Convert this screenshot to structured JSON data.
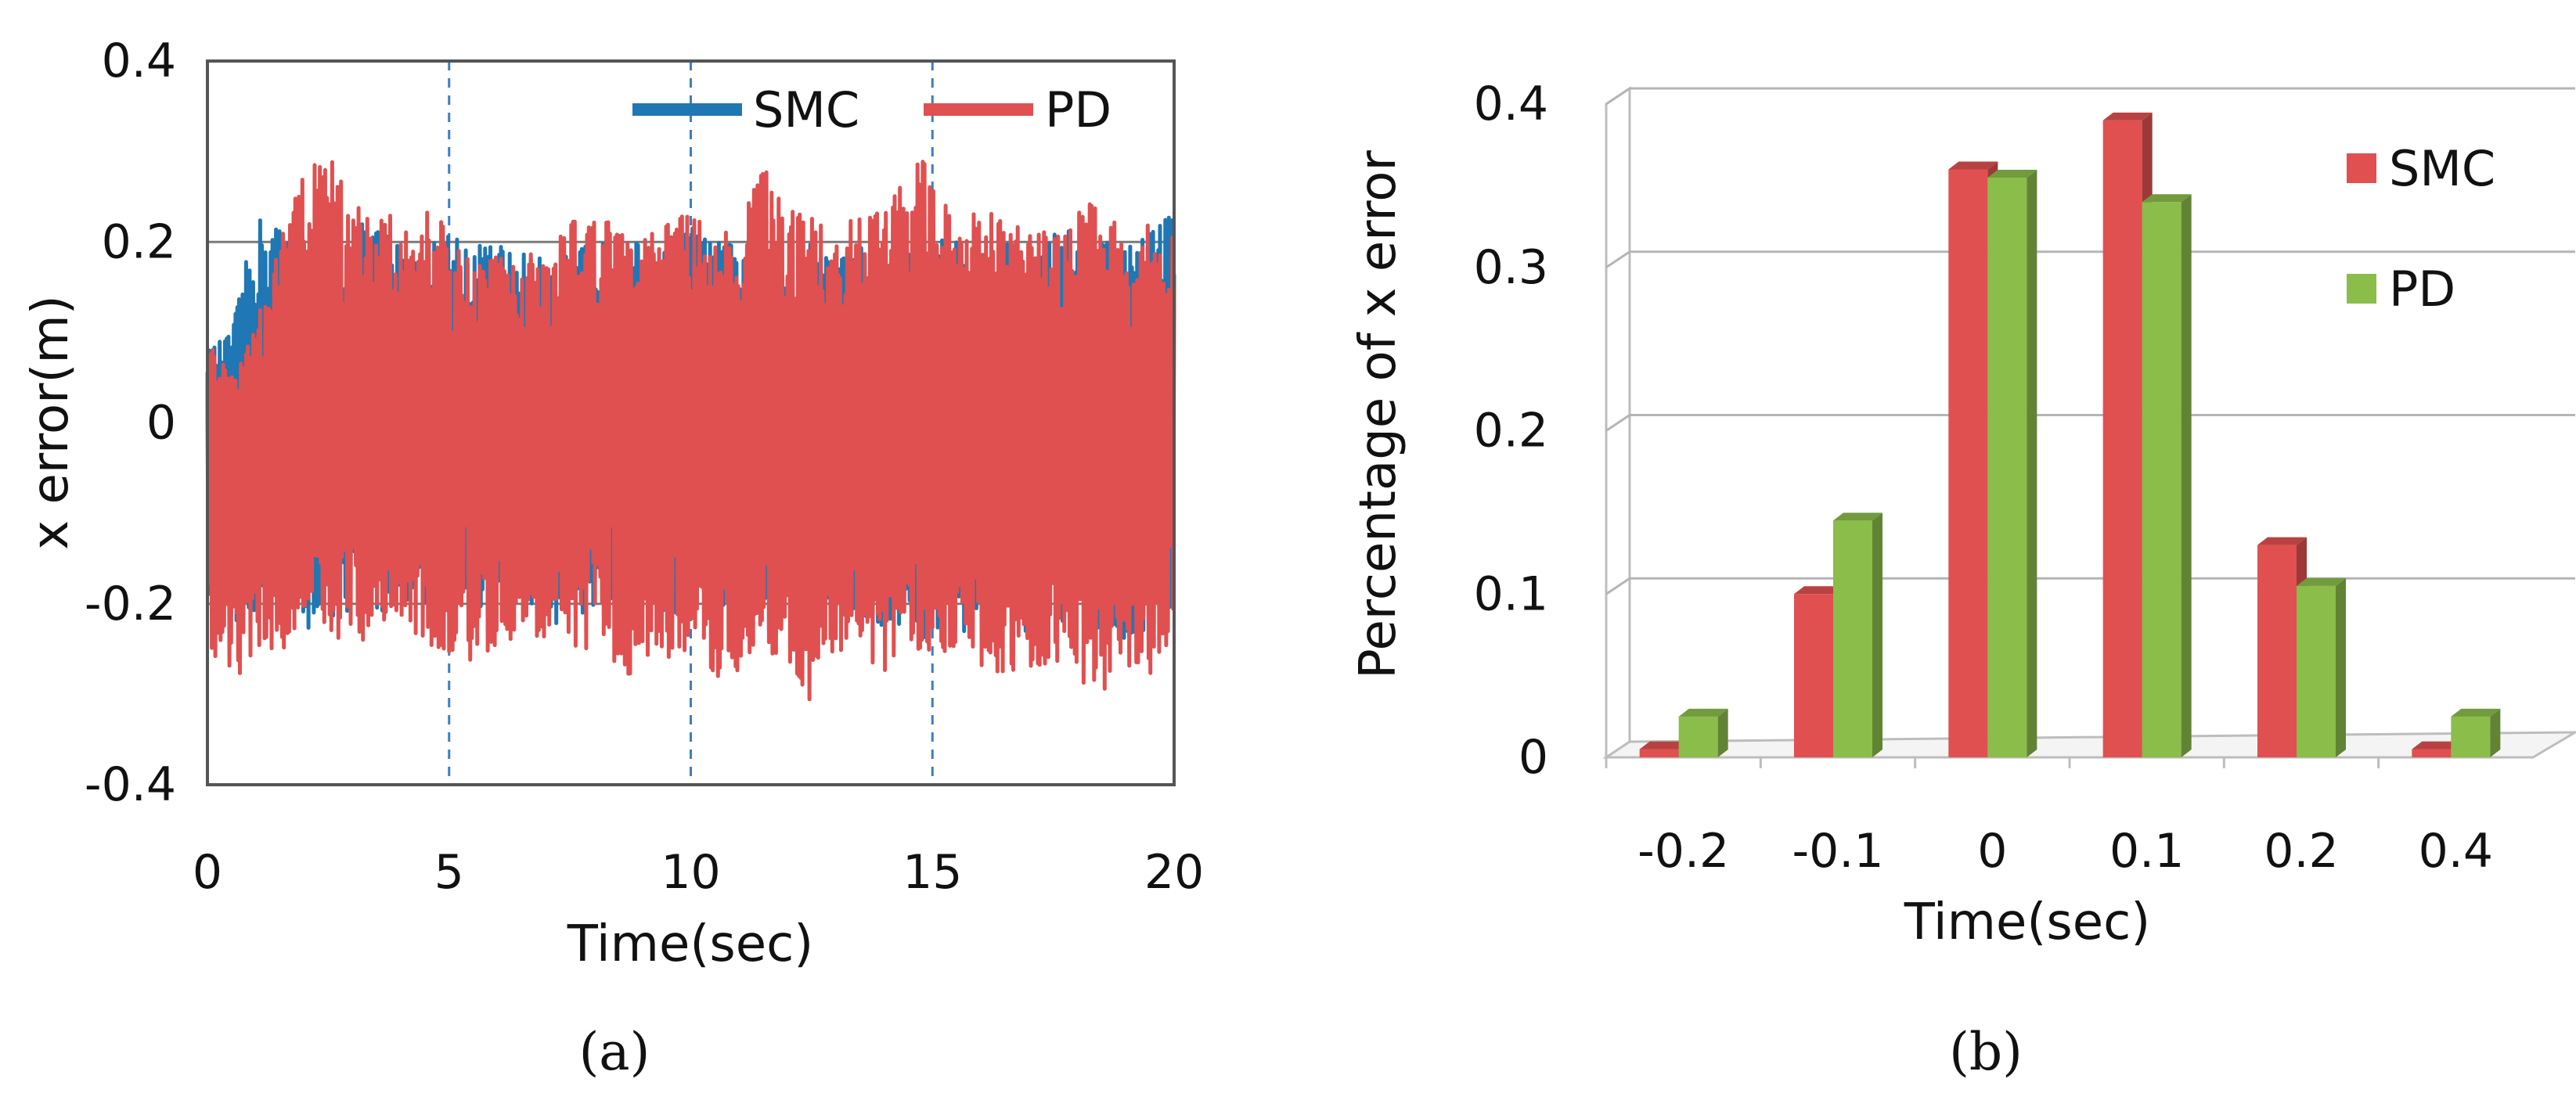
{
  "chart_data": [
    {
      "panel": "a",
      "caption": "(a)",
      "type": "line",
      "title": "",
      "xlabel": "Time(sec)",
      "ylabel": "x error(m)",
      "xlim": [
        0,
        20
      ],
      "ylim": [
        -0.4,
        0.4
      ],
      "xticks": [
        "0",
        "5",
        "10",
        "15",
        "20"
      ],
      "yticks": [
        "0.4",
        "0.2",
        "0",
        "-0.2",
        "-0.4"
      ],
      "grid": "horizontal solid, vertical dashed",
      "legend_position": "top-right",
      "series": [
        {
          "name": "SMC",
          "color": "#1f77b4",
          "x": [
            0,
            0.5,
            1,
            1.5,
            2,
            2.5,
            3,
            3.5,
            4,
            4.5,
            5,
            5.5,
            6,
            6.5,
            7,
            7.5,
            8,
            8.5,
            9,
            9.5,
            10,
            10.5,
            11,
            11.5,
            12,
            12.5,
            13,
            13.5,
            14,
            14.5,
            15,
            15.5,
            16,
            16.5,
            17,
            17.5,
            18,
            18.5,
            19,
            19.5,
            20
          ],
          "upper": [
            0.08,
            0.1,
            0.23,
            0.22,
            0.2,
            0.21,
            0.22,
            0.22,
            0.2,
            0.19,
            0.22,
            0.2,
            0.2,
            0.19,
            0.18,
            0.19,
            0.2,
            0.2,
            0.2,
            0.19,
            0.22,
            0.2,
            0.2,
            0.21,
            0.18,
            0.2,
            0.19,
            0.2,
            0.18,
            0.2,
            0.22,
            0.2,
            0.19,
            0.2,
            0.18,
            0.21,
            0.22,
            0.2,
            0.2,
            0.21,
            0.25
          ],
          "lower": [
            -0.2,
            -0.22,
            -0.23,
            -0.22,
            -0.23,
            -0.22,
            -0.21,
            -0.22,
            -0.2,
            -0.21,
            -0.2,
            -0.2,
            -0.21,
            -0.2,
            -0.22,
            -0.23,
            -0.22,
            -0.21,
            -0.2,
            -0.22,
            -0.21,
            -0.2,
            -0.22,
            -0.24,
            -0.23,
            -0.25,
            -0.22,
            -0.21,
            -0.24,
            -0.22,
            -0.25,
            -0.24,
            -0.22,
            -0.2,
            -0.24,
            -0.21,
            -0.26,
            -0.22,
            -0.24,
            -0.23,
            -0.2
          ]
        },
        {
          "name": "PD",
          "color": "#e05050",
          "x": [
            0,
            0.5,
            1,
            1.5,
            2,
            2.5,
            3,
            3.5,
            4,
            4.5,
            5,
            5.5,
            6,
            6.5,
            7,
            7.5,
            8,
            8.5,
            9,
            9.5,
            10,
            10.5,
            11,
            11.5,
            12,
            12.5,
            13,
            13.5,
            14,
            14.5,
            15,
            15.5,
            16,
            16.5,
            17,
            17.5,
            18,
            18.5,
            19,
            19.5,
            20
          ],
          "upper": [
            0.1,
            0.05,
            0.12,
            0.2,
            0.28,
            0.3,
            0.24,
            0.25,
            0.22,
            0.24,
            0.22,
            0.17,
            0.19,
            0.18,
            0.2,
            0.22,
            0.24,
            0.21,
            0.2,
            0.23,
            0.24,
            0.22,
            0.2,
            0.31,
            0.24,
            0.23,
            0.2,
            0.24,
            0.23,
            0.28,
            0.3,
            0.22,
            0.24,
            0.22,
            0.22,
            0.21,
            0.24,
            0.25,
            0.2,
            0.22,
            0.21
          ],
          "lower": [
            -0.24,
            -0.3,
            -0.26,
            -0.26,
            -0.22,
            -0.23,
            -0.25,
            -0.24,
            -0.22,
            -0.25,
            -0.26,
            -0.27,
            -0.25,
            -0.23,
            -0.24,
            -0.25,
            -0.26,
            -0.27,
            -0.3,
            -0.26,
            -0.25,
            -0.28,
            -0.29,
            -0.25,
            -0.27,
            -0.31,
            -0.25,
            -0.26,
            -0.28,
            -0.24,
            -0.27,
            -0.25,
            -0.27,
            -0.29,
            -0.28,
            -0.26,
            -0.28,
            -0.31,
            -0.27,
            -0.29,
            -0.24
          ]
        }
      ]
    },
    {
      "panel": "b",
      "caption": "(b)",
      "type": "bar",
      "style": "3d-clustered",
      "title": "",
      "xlabel": "Time(sec)",
      "ylabel": "Percentage of x error",
      "categories": [
        "-0.2",
        "-0.1",
        "0",
        "0.1",
        "0.2",
        "0.4"
      ],
      "ylim": [
        0,
        0.4
      ],
      "yticks": [
        "0.4",
        "0.3",
        "0.2",
        "0.1",
        "0"
      ],
      "grid": "horizontal",
      "legend_position": "right",
      "series": [
        {
          "name": "SMC",
          "color": "#e05050",
          "values": [
            0.005,
            0.1,
            0.36,
            0.39,
            0.13,
            0.005
          ]
        },
        {
          "name": "PD",
          "color": "#8bbd4a",
          "values": [
            0.025,
            0.145,
            0.355,
            0.34,
            0.105,
            0.025
          ]
        }
      ]
    }
  ]
}
